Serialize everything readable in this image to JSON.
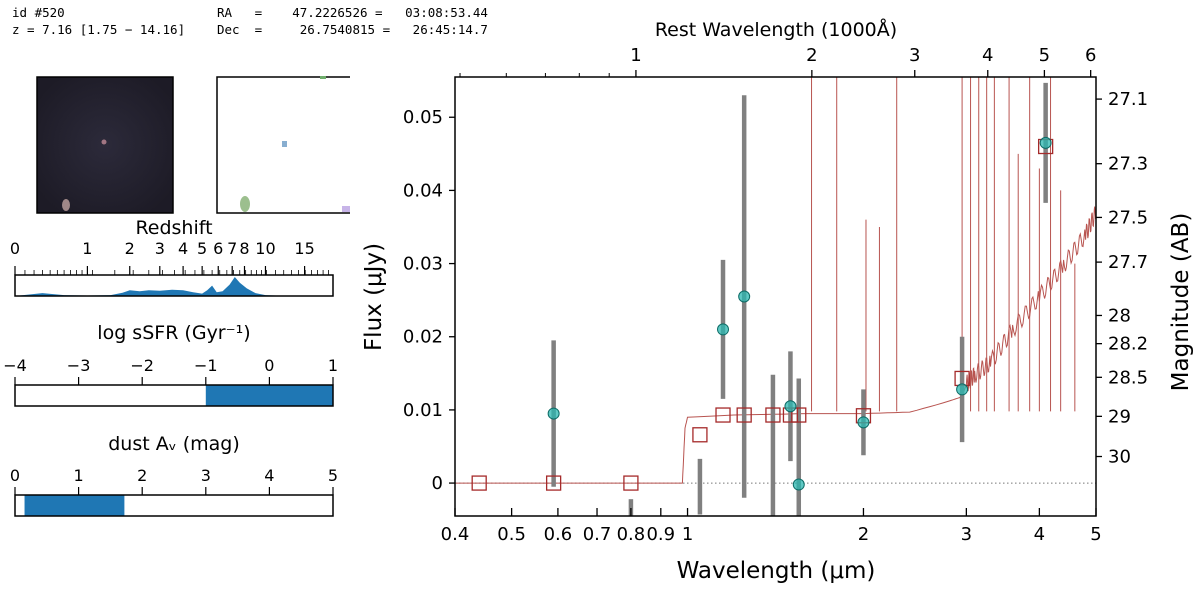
{
  "header": {
    "id_line": "id #520",
    "z_line": "z = 7.16 [1.75 − 14.16]",
    "ra_line": "RA   =    47.2226526 =   03:08:53.44",
    "dec_line": "Dec  =     26.7540815 =   26:45:14.7"
  },
  "colors": {
    "model": "#b85450",
    "model_points": "#a52a2a",
    "obs_marker": "#2ab7b0",
    "errorbar": "#808080",
    "panel_fill": "#1f77b4"
  },
  "panels": {
    "redshift": {
      "title": "Redshift",
      "ticks": [
        "0",
        "1",
        "2",
        "3",
        "4",
        "5",
        "6",
        "7",
        "8",
        "10",
        "15"
      ],
      "tick_values": [
        0,
        1,
        2,
        3,
        4,
        5,
        6,
        7,
        8,
        10,
        15
      ],
      "pdf": [
        [
          0,
          0
        ],
        [
          0.3,
          0.3
        ],
        [
          0.6,
          0.1
        ],
        [
          1.0,
          0.05
        ],
        [
          1.5,
          0.1
        ],
        [
          1.8,
          0.35
        ],
        [
          2.0,
          0.6
        ],
        [
          2.3,
          0.5
        ],
        [
          2.6,
          0.6
        ],
        [
          3.0,
          0.55
        ],
        [
          3.5,
          0.65
        ],
        [
          4.0,
          0.6
        ],
        [
          4.5,
          0.4
        ],
        [
          5.0,
          0.25
        ],
        [
          5.3,
          0.6
        ],
        [
          5.6,
          1.1
        ],
        [
          5.9,
          0.4
        ],
        [
          6.3,
          0.5
        ],
        [
          6.8,
          1.2
        ],
        [
          7.2,
          2.0
        ],
        [
          7.6,
          1.4
        ],
        [
          8.2,
          0.8
        ],
        [
          9,
          0.3
        ],
        [
          10,
          0.1
        ],
        [
          12,
          0.02
        ],
        [
          20,
          0
        ]
      ]
    },
    "ssfr": {
      "title": "log sSFR (Gyr⁻¹)",
      "ticks": [
        "−4",
        "−3",
        "−2",
        "−1",
        "0",
        "1"
      ],
      "range": [
        -4,
        1
      ],
      "band": [
        -1.0,
        1.0
      ]
    },
    "dust": {
      "title": "dust Aᵥ (mag)",
      "ticks": [
        "0",
        "1",
        "2",
        "3",
        "4",
        "5"
      ],
      "range": [
        0,
        5
      ],
      "band": [
        0.15,
        1.72
      ]
    }
  },
  "chart_data": {
    "type": "scatter",
    "xlabel": "Wavelength (μm)",
    "ylabel": "Flux (μJy)",
    "top_xlabel": "Rest Wavelength (1000Å)",
    "right_ylabel": "Magnitude (AB)",
    "x_scale": "log",
    "xlim": [
      0.4,
      5.0
    ],
    "ylim": [
      -0.0045,
      0.0555
    ],
    "x_ticks": [
      0.4,
      0.5,
      0.6,
      0.7,
      0.8,
      0.9,
      1,
      2,
      3,
      4,
      5
    ],
    "x_tick_labels": [
      "0.4",
      "0.5",
      "0.6",
      "0.7",
      "0.8",
      "0.9",
      "1",
      "2",
      "3",
      "4",
      "5"
    ],
    "y_ticks": [
      0,
      0.01,
      0.02,
      0.03,
      0.04,
      0.05
    ],
    "y_tick_labels": [
      "0",
      "0.01",
      "0.02",
      "0.03",
      "0.04",
      "0.05"
    ],
    "top_ticks": [
      1,
      2,
      3,
      4,
      5,
      6
    ],
    "top_tick_labels": [
      "1",
      "2",
      "3",
      "4",
      "5",
      "6"
    ],
    "mag_ticks": [
      27.1,
      27.3,
      27.5,
      27.7,
      28,
      28.2,
      28.5,
      29,
      30
    ],
    "mag_tick_labels": [
      "27.1",
      "27.3",
      "27.5",
      "27.7",
      "28",
      "28.2",
      "28.5",
      "29",
      "30"
    ],
    "observed": [
      {
        "x": 0.59,
        "y": 0.0095,
        "err": 0.01
      },
      {
        "x": 1.15,
        "y": 0.021,
        "err": 0.0095
      },
      {
        "x": 1.25,
        "y": 0.0255,
        "err": 0.0275
      },
      {
        "x": 1.5,
        "y": 0.0105,
        "err": 0.0075
      },
      {
        "x": 1.55,
        "y": -0.0002,
        "err": 0.0145
      },
      {
        "x": 2.0,
        "y": 0.0083,
        "err": 0.0045
      },
      {
        "x": 2.95,
        "y": 0.0128,
        "err": 0.0072
      },
      {
        "x": 4.1,
        "y": 0.0465,
        "err": 0.0082
      }
    ],
    "lone_errorbars": [
      {
        "x": 0.8,
        "y": -0.005,
        "err": 0.0028
      },
      {
        "x": 1.05,
        "y": -0.0005,
        "err": 0.0038
      },
      {
        "x": 1.4,
        "y": 0.0,
        "err": 0.0148
      }
    ],
    "model_points": [
      {
        "x": 0.44,
        "y": 0.0
      },
      {
        "x": 0.59,
        "y": 0.0
      },
      {
        "x": 0.8,
        "y": 0.0
      },
      {
        "x": 1.05,
        "y": 0.0066
      },
      {
        "x": 1.15,
        "y": 0.0093
      },
      {
        "x": 1.25,
        "y": 0.0093
      },
      {
        "x": 1.4,
        "y": 0.0093
      },
      {
        "x": 1.5,
        "y": 0.0093
      },
      {
        "x": 1.55,
        "y": 0.0093
      },
      {
        "x": 2.0,
        "y": 0.0092
      },
      {
        "x": 2.95,
        "y": 0.0143
      },
      {
        "x": 4.1,
        "y": 0.046
      }
    ],
    "model_curve": [
      [
        0.4,
        0.0
      ],
      [
        0.98,
        0.0
      ],
      [
        0.99,
        0.0075
      ],
      [
        1.0,
        0.009
      ],
      [
        1.2,
        0.0093
      ],
      [
        1.6,
        0.0095
      ],
      [
        2.0,
        0.0095
      ],
      [
        2.4,
        0.0097
      ],
      [
        2.8,
        0.0112
      ],
      [
        2.95,
        0.0118
      ],
      [
        3.0,
        0.0135
      ],
      [
        3.1,
        0.0148
      ],
      [
        3.3,
        0.0165
      ],
      [
        3.6,
        0.021
      ],
      [
        4.0,
        0.0255
      ],
      [
        4.4,
        0.0298
      ],
      [
        4.8,
        0.034
      ],
      [
        5.0,
        0.037
      ]
    ],
    "emission_lines": [
      {
        "x": 1.63,
        "peak": 0.056
      },
      {
        "x": 1.8,
        "peak": 0.056
      },
      {
        "x": 2.02,
        "peak": 0.036
      },
      {
        "x": 2.13,
        "peak": 0.035
      },
      {
        "x": 2.28,
        "peak": 0.056
      },
      {
        "x": 2.95,
        "peak": 0.056
      },
      {
        "x": 3.05,
        "peak": 0.056
      },
      {
        "x": 3.15,
        "peak": 0.056
      },
      {
        "x": 3.25,
        "peak": 0.056
      },
      {
        "x": 3.35,
        "peak": 0.056
      },
      {
        "x": 3.55,
        "peak": 0.056
      },
      {
        "x": 3.68,
        "peak": 0.045
      },
      {
        "x": 3.85,
        "peak": 0.056
      },
      {
        "x": 4.0,
        "peak": 0.043
      },
      {
        "x": 4.18,
        "peak": 0.056
      },
      {
        "x": 4.35,
        "peak": 0.04
      },
      {
        "x": 4.6,
        "peak": 0.03
      }
    ]
  }
}
